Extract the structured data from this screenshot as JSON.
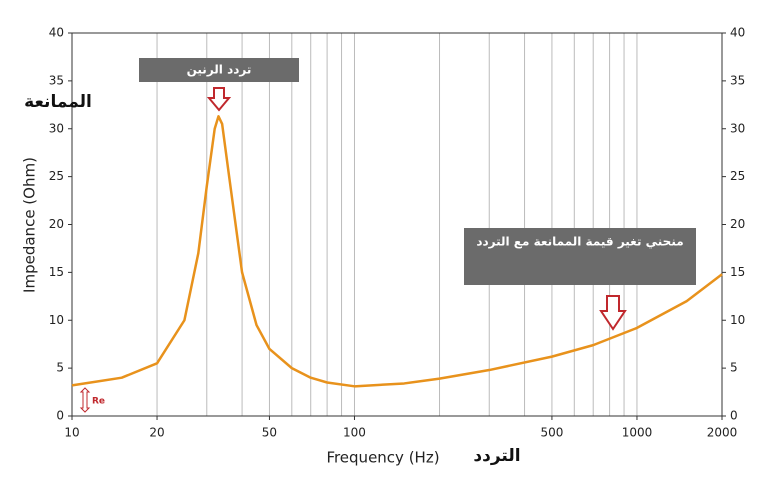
{
  "chart_data": {
    "type": "line",
    "x_label": "Frequency (Hz)",
    "y_label": "Impedance (Ohm)",
    "x": [
      10,
      15,
      20,
      25,
      28,
      30,
      32,
      33,
      34,
      36,
      40,
      45,
      50,
      60,
      70,
      80,
      100,
      150,
      200,
      300,
      500,
      700,
      1000,
      1500,
      2000
    ],
    "series": [
      {
        "name": "Impedance",
        "color": "#e8921c",
        "values": [
          3.2,
          4,
          5.5,
          10,
          17,
          24,
          30,
          31.3,
          30.5,
          25,
          15,
          9.5,
          7,
          5,
          4,
          3.5,
          3.1,
          3.4,
          3.9,
          4.8,
          6.2,
          7.4,
          9.2,
          12,
          14.8
        ]
      }
    ],
    "xlim": [
      10,
      2000
    ],
    "x_log": true,
    "xticks": [
      10,
      20,
      50,
      100,
      500,
      1000,
      2000
    ],
    "x_grid": [
      10,
      20,
      30,
      40,
      50,
      60,
      70,
      80,
      90,
      100,
      200,
      300,
      400,
      500,
      600,
      700,
      800,
      900,
      1000,
      2000
    ],
    "ylim": [
      0,
      40
    ],
    "yticks": [
      0,
      5,
      10,
      15,
      20,
      25,
      30,
      35,
      40
    ],
    "annotations": [
      "تردد الرنين",
      "الممانعة",
      "منحني تغير قيمة الممانعة مع التردد",
      "التردد",
      "Re"
    ]
  }
}
